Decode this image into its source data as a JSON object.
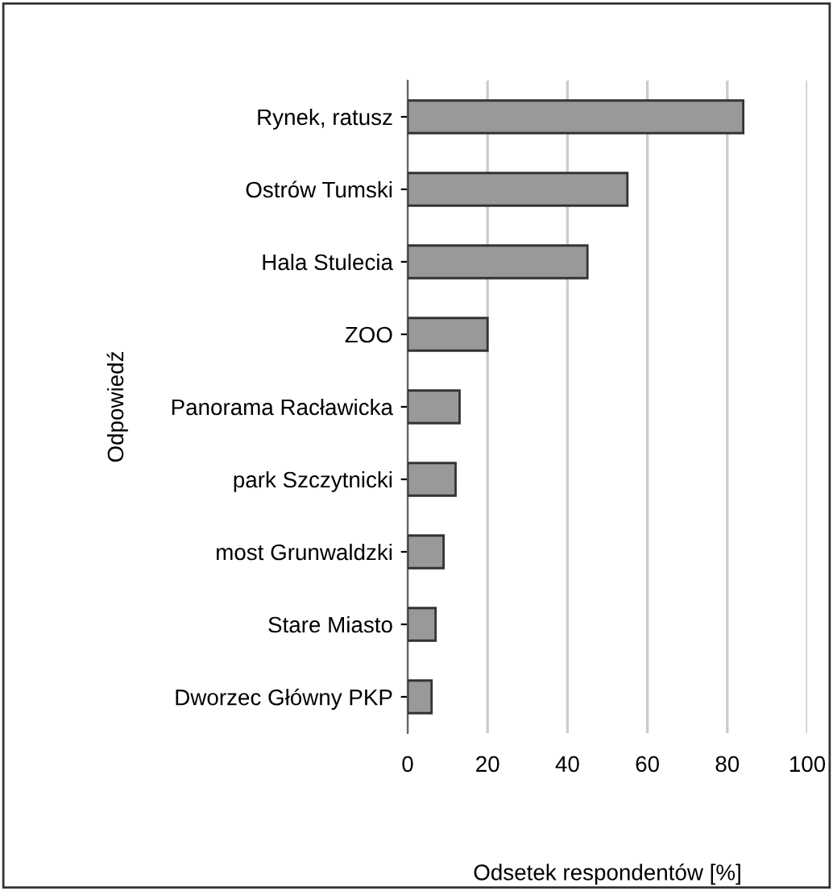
{
  "chart_data": {
    "type": "bar",
    "orientation": "horizontal",
    "xlabel": "Odsetek respondentów [%]",
    "ylabel": "Odpowiedź",
    "categories": [
      "Rynek, ratusz",
      "Ostrów Tumski",
      "Hala Stulecia",
      "ZOO",
      "Panorama Racławicka",
      "park Szczytnicki",
      "most Grunwaldzki",
      "Stare Miasto",
      "Dworzec Główny PKP"
    ],
    "values": [
      84,
      55,
      45,
      20,
      13,
      12,
      9,
      7,
      6
    ],
    "color": "#999999",
    "xlim": [
      0,
      100
    ],
    "xticks": [
      0,
      20,
      40,
      60,
      80,
      100
    ],
    "grid": "x",
    "legend": false
  }
}
